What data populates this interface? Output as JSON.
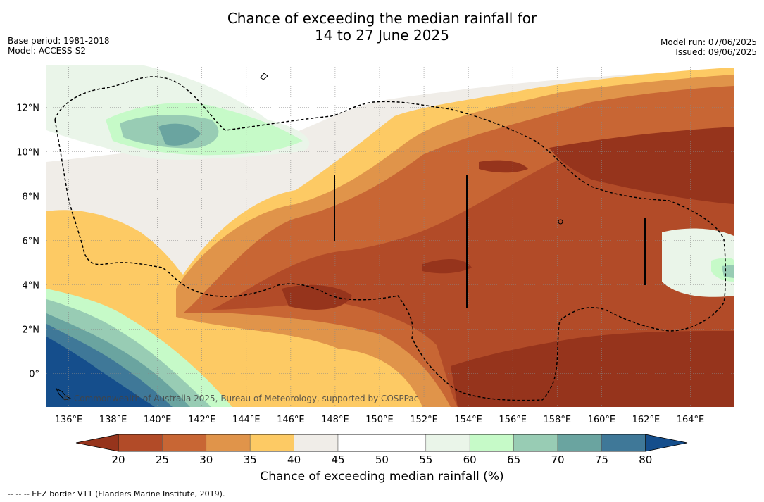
{
  "title_line1": "Chance of exceeding the median rainfall for",
  "title_line2": "14 to 27 June 2025",
  "base_period": "Base period: 1981-2018",
  "model": "Model: ACCESS-S2",
  "model_run": "Model run: 07/06/2025",
  "issued": "Issued: 09/06/2025",
  "copyright": "© Commonwealth of Australia 2025, Bureau of Meteorology, supported by COSPPac",
  "footnote": "-- -- -- EEZ border V11 (Flanders Marine Institute, 2019).",
  "colorbar": {
    "label": "Chance of exceeding median rainfall (%)",
    "ticks": [
      "20",
      "25",
      "30",
      "35",
      "40",
      "45",
      "50",
      "55",
      "60",
      "65",
      "70",
      "75",
      "80"
    ],
    "colors": [
      "#96341c",
      "#b24b28",
      "#c86634",
      "#e0944a",
      "#fdca64",
      "#f0ede8",
      "#ffffff",
      "#ffffff",
      "#eaf5e9",
      "#c6fac8",
      "#98ccb4",
      "#6aa4a0",
      "#3f7898",
      "#154e8c"
    ]
  },
  "map": {
    "lon_labels": [
      "136°E",
      "138°E",
      "140°E",
      "142°E",
      "144°E",
      "146°E",
      "148°E",
      "150°E",
      "152°E",
      "154°E",
      "156°E",
      "158°E",
      "160°E",
      "162°E",
      "164°E"
    ],
    "lat_labels": [
      "12°N",
      "10°N",
      "8°N",
      "6°N",
      "4°N",
      "2°N",
      "0°"
    ]
  }
}
